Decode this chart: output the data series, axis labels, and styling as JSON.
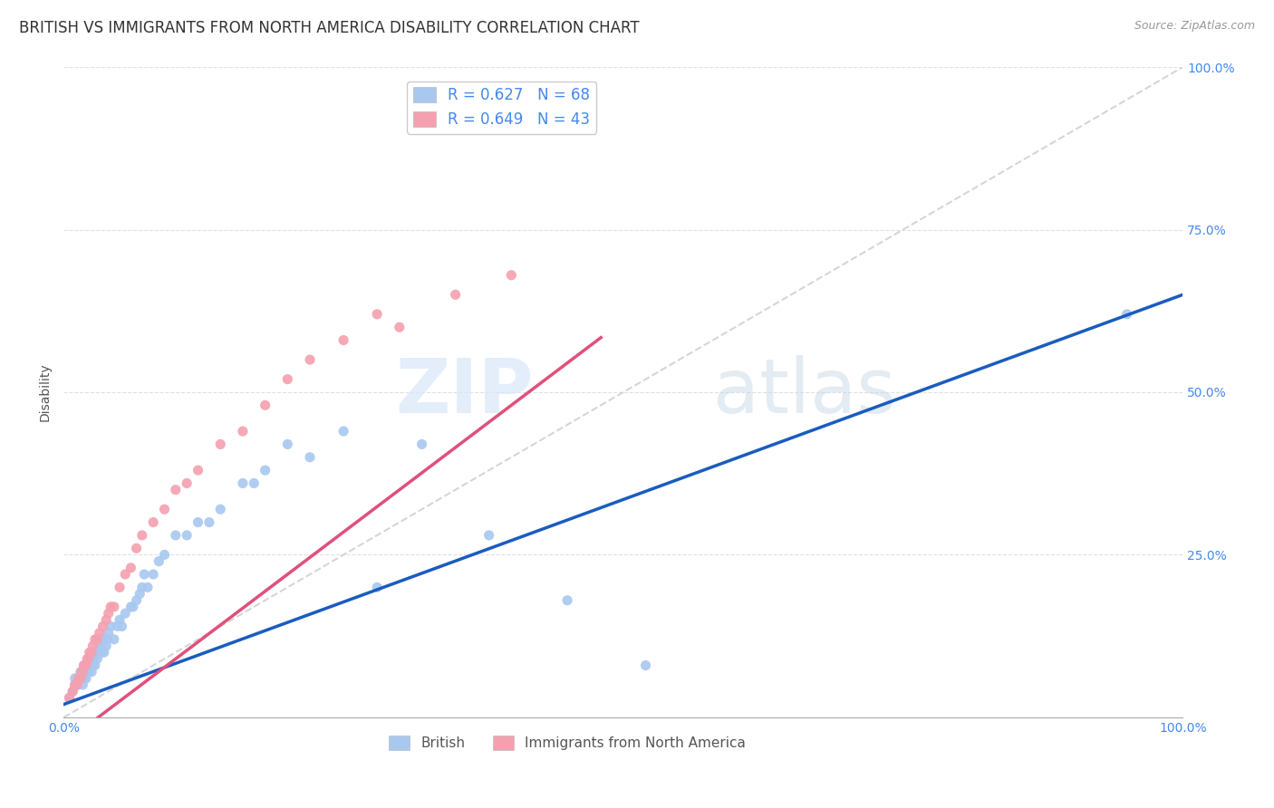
{
  "title": "BRITISH VS IMMIGRANTS FROM NORTH AMERICA DISABILITY CORRELATION CHART",
  "source": "Source: ZipAtlas.com",
  "ylabel": "Disability",
  "xlim": [
    0,
    1.0
  ],
  "ylim": [
    0,
    1.0
  ],
  "xtick_positions": [
    0.0,
    0.25,
    0.5,
    0.75,
    1.0
  ],
  "xtick_labels_show": [
    "0.0%",
    "",
    "",
    "",
    "100.0%"
  ],
  "ytick_positions": [
    0.25,
    0.5,
    0.75,
    1.0
  ],
  "yticklabels_right": [
    "25.0%",
    "50.0%",
    "75.0%",
    "100.0%"
  ],
  "british_color": "#a8c8f0",
  "immigrant_color": "#f4a0b0",
  "british_line_color": "#1a5cbf",
  "immigrant_line_color": "#e0507a",
  "diagonal_color": "#cccccc",
  "R_british": 0.627,
  "N_british": 68,
  "R_immigrant": 0.649,
  "N_immigrant": 43,
  "legend_label_british": "British",
  "legend_label_immigrant": "Immigrants from North America",
  "watermark_zip": "ZIP",
  "watermark_atlas": "atlas",
  "title_fontsize": 12,
  "axis_label_fontsize": 10,
  "tick_fontsize": 10,
  "brit_line_intercept": 0.02,
  "brit_line_slope": 0.63,
  "imm_line_intercept": -0.04,
  "imm_line_slope": 1.3,
  "british_x": [
    0.005,
    0.008,
    0.01,
    0.01,
    0.012,
    0.013,
    0.015,
    0.015,
    0.016,
    0.017,
    0.018,
    0.018,
    0.02,
    0.02,
    0.021,
    0.022,
    0.022,
    0.023,
    0.025,
    0.025,
    0.026,
    0.027,
    0.028,
    0.028,
    0.03,
    0.03,
    0.031,
    0.032,
    0.033,
    0.034,
    0.035,
    0.036,
    0.038,
    0.039,
    0.04,
    0.042,
    0.045,
    0.048,
    0.05,
    0.052,
    0.055,
    0.06,
    0.062,
    0.065,
    0.068,
    0.07,
    0.072,
    0.075,
    0.08,
    0.085,
    0.09,
    0.1,
    0.11,
    0.12,
    0.13,
    0.14,
    0.16,
    0.17,
    0.18,
    0.2,
    0.22,
    0.25,
    0.28,
    0.32,
    0.38,
    0.45,
    0.52,
    0.95
  ],
  "british_y": [
    0.03,
    0.04,
    0.05,
    0.06,
    0.05,
    0.06,
    0.07,
    0.06,
    0.07,
    0.05,
    0.06,
    0.08,
    0.06,
    0.07,
    0.08,
    0.07,
    0.08,
    0.09,
    0.07,
    0.09,
    0.08,
    0.09,
    0.1,
    0.08,
    0.09,
    0.1,
    0.1,
    0.11,
    0.11,
    0.1,
    0.12,
    0.1,
    0.11,
    0.12,
    0.13,
    0.14,
    0.12,
    0.14,
    0.15,
    0.14,
    0.16,
    0.17,
    0.17,
    0.18,
    0.19,
    0.2,
    0.22,
    0.2,
    0.22,
    0.24,
    0.25,
    0.28,
    0.28,
    0.3,
    0.3,
    0.32,
    0.36,
    0.36,
    0.38,
    0.42,
    0.4,
    0.44,
    0.2,
    0.42,
    0.28,
    0.18,
    0.08,
    0.62
  ],
  "immigrant_x": [
    0.005,
    0.008,
    0.01,
    0.012,
    0.013,
    0.015,
    0.016,
    0.017,
    0.018,
    0.02,
    0.021,
    0.022,
    0.023,
    0.025,
    0.026,
    0.028,
    0.03,
    0.032,
    0.035,
    0.038,
    0.04,
    0.042,
    0.045,
    0.05,
    0.055,
    0.06,
    0.065,
    0.07,
    0.08,
    0.09,
    0.1,
    0.11,
    0.12,
    0.14,
    0.16,
    0.18,
    0.2,
    0.22,
    0.25,
    0.28,
    0.3,
    0.35,
    0.4
  ],
  "immigrant_y": [
    0.03,
    0.04,
    0.05,
    0.05,
    0.06,
    0.06,
    0.07,
    0.07,
    0.08,
    0.08,
    0.09,
    0.09,
    0.1,
    0.1,
    0.11,
    0.12,
    0.12,
    0.13,
    0.14,
    0.15,
    0.16,
    0.17,
    0.17,
    0.2,
    0.22,
    0.23,
    0.26,
    0.28,
    0.3,
    0.32,
    0.35,
    0.36,
    0.38,
    0.42,
    0.44,
    0.48,
    0.52,
    0.55,
    0.58,
    0.62,
    0.6,
    0.65,
    0.68
  ]
}
